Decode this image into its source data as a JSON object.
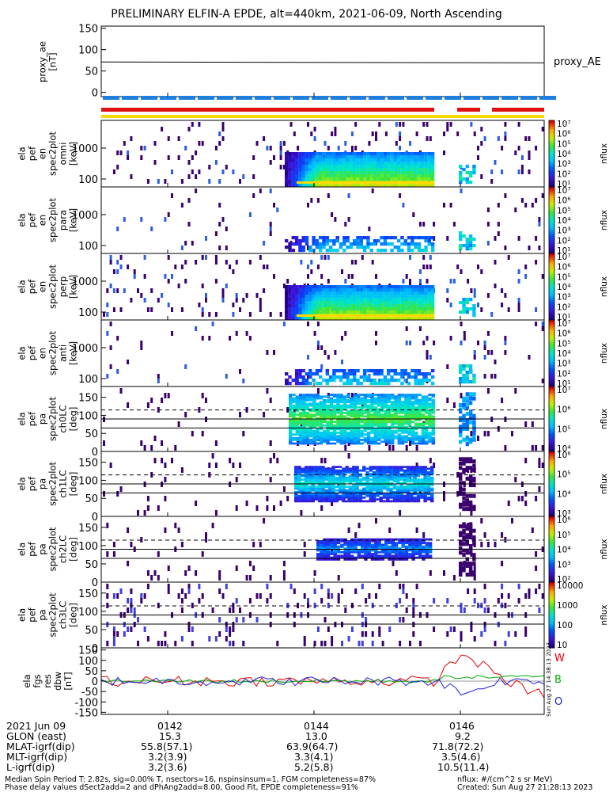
{
  "title": "PRELIMINARY ELFIN-A EPDE, alt=440km, 2021-06-09, North Ascending",
  "colors": {
    "status_blue": "#1f7fe0",
    "status_red": "#e01010",
    "status_yellow": "#f5d800",
    "trace_red": "#e00000",
    "trace_green": "#00b000",
    "trace_blue": "#2020d0"
  },
  "chart_data": [
    {
      "id": "proxy_ae",
      "type": "line",
      "ylabel": "proxy_ae [nT]",
      "yticks": [
        "150",
        "100",
        "50",
        "0"
      ],
      "ylim": [
        -10,
        155
      ],
      "series": [
        {
          "name": "proxy_AE",
          "x": [
            0,
            1
          ],
          "values": [
            71,
            69
          ]
        }
      ],
      "legend_text": "proxy_AE"
    },
    {
      "id": "status_bars",
      "type": "bar",
      "rows": [
        "blue",
        "red",
        "yellow"
      ]
    },
    {
      "id": "energy_spectra",
      "type": "heatmap",
      "panels": [
        {
          "ylabel": [
            "ela",
            "pef",
            "en",
            "spec2plot",
            "omni",
            "[keV]"
          ],
          "yticks": [
            "1000",
            "100"
          ],
          "cbar_ticks": [
            "10⁷",
            "10⁶",
            "10⁵",
            "10⁴",
            "10³",
            "10²",
            "10¹"
          ],
          "cbar_label": "nflux"
        },
        {
          "ylabel": [
            "ela",
            "pef",
            "en",
            "spec2plot",
            "para",
            "[keV]"
          ],
          "yticks": [
            "1000",
            "100"
          ],
          "cbar_ticks": [
            "10⁷",
            "10⁶",
            "10⁵",
            "10⁴",
            "10³",
            "10²",
            "10¹"
          ],
          "cbar_label": "nflux"
        },
        {
          "ylabel": [
            "ela",
            "pef",
            "en",
            "spec2plot",
            "perp",
            "[keV]"
          ],
          "yticks": [
            "1000",
            "100"
          ],
          "cbar_ticks": [
            "10⁷",
            "10⁶",
            "10⁵",
            "10⁴",
            "10³",
            "10²",
            "10¹"
          ],
          "cbar_label": "nflux"
        },
        {
          "ylabel": [
            "ela",
            "pef",
            "en",
            "spec2plot",
            "anti",
            "[keV]"
          ],
          "yticks": [
            "1000",
            "100"
          ],
          "cbar_ticks": [
            "10⁷",
            "10⁶",
            "10⁵",
            "10⁴",
            "10³",
            "10²",
            "10¹"
          ],
          "cbar_label": "nflux"
        }
      ]
    },
    {
      "id": "pitch_angle_spectra",
      "type": "heatmap",
      "panels": [
        {
          "ylabel": [
            "ela",
            "pef",
            "pa",
            "spec2plot",
            "ch0LC",
            "[deg]"
          ],
          "yticks": [
            "150",
            "100",
            "50",
            "0"
          ],
          "cbar_ticks": [
            "10⁷",
            "10⁶",
            "10⁵",
            "10⁴"
          ],
          "cbar_label": "nflux"
        },
        {
          "ylabel": [
            "ela",
            "pef",
            "pa",
            "spec2plot",
            "ch1LC",
            "[deg]"
          ],
          "yticks": [
            "150",
            "100",
            "50",
            "0"
          ],
          "cbar_ticks": [
            "10⁶",
            "10⁵",
            "10⁴",
            "10³"
          ],
          "cbar_label": "nflux"
        },
        {
          "ylabel": [
            "ela",
            "pef",
            "pa",
            "spec2plot",
            "ch2LC",
            "[deg]"
          ],
          "yticks": [
            "150",
            "100",
            "50",
            "0"
          ],
          "cbar_ticks": [
            "10⁶",
            "10⁵",
            "10⁴",
            "10³",
            "10²"
          ],
          "cbar_label": "nflux"
        },
        {
          "ylabel": [
            "ela",
            "pef",
            "pa",
            "spec2plot",
            "ch3LC",
            "[deg]"
          ],
          "yticks": [
            "150",
            "100",
            "50",
            "0"
          ],
          "cbar_ticks": [
            "10000",
            "1000",
            "100",
            "10"
          ],
          "cbar_label": "nflux"
        }
      ]
    },
    {
      "id": "fgs_residuals",
      "type": "line",
      "ylabel": [
        "ela",
        "fgs",
        "res",
        "dbw",
        "[nT]"
      ],
      "yticks": [
        "150",
        "100",
        "50",
        "0",
        "-50",
        "-100",
        "-150"
      ],
      "ylim": [
        -160,
        160
      ],
      "series": [
        {
          "name": "W",
          "color": "#e00000"
        },
        {
          "name": "B",
          "color": "#00b000"
        },
        {
          "name": "O",
          "color": "#2020d0"
        }
      ],
      "side_text": "Sun Aug 27 14:38:13 2023"
    }
  ],
  "footer": {
    "rows": [
      {
        "label": "2021 Jun 09",
        "values": [
          "0142",
          "0144",
          "0146"
        ]
      },
      {
        "label": "GLON (east)",
        "values": [
          "15.3",
          "13.0",
          "9.2"
        ]
      },
      {
        "label": "MLAT-igrf(dip)",
        "values": [
          "55.8(57.1)",
          "63.9(64.7)",
          "71.8(72.2)"
        ]
      },
      {
        "label": "MLT-igrf(dip)",
        "values": [
          "3.2(3.9)",
          "3.3(4.1)",
          "3.5(4.6)"
        ]
      },
      {
        "label": "L-igrf(dip)",
        "values": [
          "3.2(3.6)",
          "5.2(5.8)",
          "10.5(11.4)"
        ]
      }
    ],
    "note1": "Median Spin Period T: 2.82s, sig=0.00% T, nsectors=16, nspinsinsum=1, FGM completeness=87%",
    "note2": "Phase delay values dSect2add=2 and dPhAng2add=8.00, Good Fit, EPDE completeness=91%",
    "units": "nflux: #/(cm^2 s sr MeV)",
    "created": "Created: Sun Aug 27 21:28:13 2023"
  }
}
